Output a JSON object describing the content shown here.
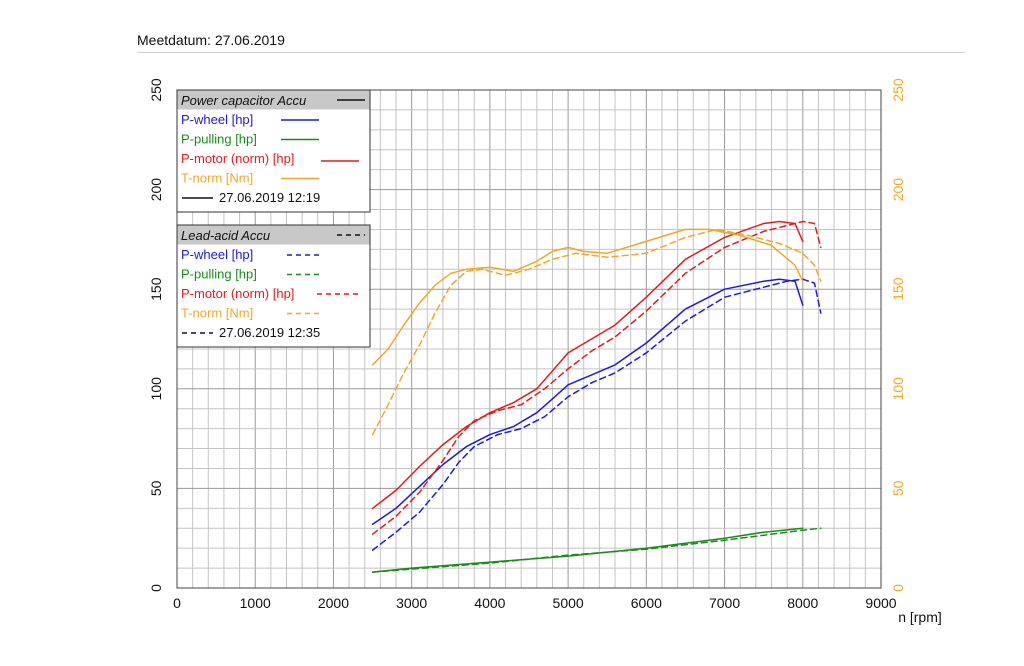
{
  "header": {
    "text": "Meetdatum: 27.06.2019"
  },
  "chart_data": {
    "type": "line",
    "xlabel": "n [rpm]",
    "xlim": [
      0,
      9000
    ],
    "ylim": [
      0,
      250
    ],
    "xticks": [
      0,
      1000,
      2000,
      3000,
      4000,
      5000,
      6000,
      7000,
      8000,
      9000
    ],
    "yticks": [
      0,
      50,
      100,
      150,
      200,
      250
    ],
    "grid": true,
    "right_axis_color": "#f5a623",
    "colors": {
      "p_wheel": "#1a1ae6",
      "p_pulling": "#1a8c1a",
      "p_motor": "#e61a1a",
      "t_norm": "#f5a623"
    },
    "legends": [
      {
        "title": "Power capacitor Accu",
        "dash": "solid",
        "entries": [
          {
            "label": "P-wheel [hp]",
            "series": "p_wheel"
          },
          {
            "label": "P-pulling [hp]",
            "series": "p_pulling"
          },
          {
            "label": "P-motor (norm) [hp]",
            "series": "p_motor"
          },
          {
            "label": "T-norm [Nm]",
            "series": "t_norm"
          },
          {
            "label": "27.06.2019 12:19",
            "series": "black"
          }
        ]
      },
      {
        "title": "Lead-acid Accu",
        "dash": "dashed",
        "entries": [
          {
            "label": "P-wheel [hp]",
            "series": "p_wheel"
          },
          {
            "label": "P-pulling [hp]",
            "series": "p_pulling"
          },
          {
            "label": "P-motor (norm) [hp]",
            "series": "p_motor"
          },
          {
            "label": "T-norm [Nm]",
            "series": "t_norm"
          },
          {
            "label": "27.06.2019 12:35",
            "series": "black"
          }
        ]
      }
    ],
    "series": [
      {
        "name": "P-wheel [hp] (Power capacitor Accu)",
        "key": "p_wheel",
        "dash": "solid",
        "x": [
          2500,
          2800,
          3100,
          3400,
          3700,
          4000,
          4300,
          4600,
          4800,
          5000,
          5300,
          5600,
          6000,
          6500,
          7000,
          7500,
          7700,
          7900,
          8000
        ],
        "y": [
          32,
          40,
          51,
          62,
          71,
          77,
          81,
          88,
          95,
          102,
          107,
          112,
          123,
          140,
          150,
          154,
          155,
          154,
          142
        ]
      },
      {
        "name": "P-wheel [hp] (Lead-acid Accu)",
        "key": "p_wheel",
        "dash": "dashed",
        "x": [
          2500,
          2800,
          3100,
          3400,
          3600,
          3800,
          4100,
          4400,
          4700,
          5000,
          5300,
          5600,
          6000,
          6500,
          7000,
          7500,
          7800,
          8000,
          8150,
          8230
        ],
        "y": [
          19,
          28,
          38,
          52,
          63,
          71,
          77,
          80,
          86,
          96,
          103,
          108,
          118,
          134,
          146,
          151,
          154,
          155,
          153,
          138
        ]
      },
      {
        "name": "P-pulling [hp] (Power capacitor Accu)",
        "key": "p_pulling",
        "dash": "solid",
        "x": [
          2500,
          3000,
          4000,
          5000,
          6000,
          7000,
          7500,
          8000
        ],
        "y": [
          8,
          10,
          13,
          16,
          20,
          25,
          28,
          30
        ]
      },
      {
        "name": "P-pulling [hp] (Lead-acid Accu)",
        "key": "p_pulling",
        "dash": "dashed",
        "x": [
          2500,
          3000,
          4000,
          5000,
          6000,
          7000,
          7500,
          8000,
          8230
        ],
        "y": [
          8,
          9.5,
          12.5,
          16.5,
          19.5,
          24,
          26.5,
          29,
          30
        ]
      },
      {
        "name": "P-motor (norm) [hp] (Power capacitor Accu)",
        "key": "p_motor",
        "dash": "solid",
        "x": [
          2500,
          2800,
          3100,
          3400,
          3700,
          4000,
          4300,
          4600,
          4800,
          5000,
          5300,
          5600,
          6000,
          6500,
          7000,
          7500,
          7700,
          7900,
          8000
        ],
        "y": [
          40,
          49,
          61,
          72,
          81,
          88,
          93,
          100,
          109,
          118,
          125,
          132,
          146,
          165,
          176,
          183,
          184,
          183,
          174
        ]
      },
      {
        "name": "P-motor (norm) [hp] (Lead-acid Accu)",
        "key": "p_motor",
        "dash": "dashed",
        "x": [
          2500,
          2800,
          3100,
          3400,
          3600,
          3800,
          4100,
          4400,
          4700,
          5000,
          5300,
          5600,
          6000,
          6500,
          7000,
          7500,
          7800,
          8000,
          8150,
          8230
        ],
        "y": [
          27,
          36,
          48,
          64,
          76,
          84,
          89,
          92,
          100,
          110,
          119,
          126,
          139,
          158,
          171,
          179,
          182,
          184,
          183,
          171
        ]
      },
      {
        "name": "T-norm [Nm] (Power capacitor Accu)",
        "key": "t_norm",
        "dash": "solid",
        "x": [
          2500,
          2700,
          2900,
          3100,
          3300,
          3500,
          3700,
          4000,
          4300,
          4600,
          4800,
          5000,
          5200,
          5500,
          6000,
          6500,
          6800,
          7200,
          7600,
          7900,
          8000
        ],
        "y": [
          112,
          120,
          132,
          143,
          152,
          158,
          160,
          161,
          159,
          164,
          169,
          171,
          169,
          168,
          174,
          180,
          180,
          177,
          172,
          162,
          154
        ]
      },
      {
        "name": "T-norm [Nm] (Lead-acid Accu)",
        "key": "t_norm",
        "dash": "dashed",
        "x": [
          2500,
          2700,
          2900,
          3100,
          3300,
          3500,
          3700,
          3900,
          4200,
          4500,
          4800,
          5100,
          5500,
          6000,
          6500,
          6900,
          7300,
          7700,
          8000,
          8150,
          8230
        ],
        "y": [
          77,
          92,
          108,
          122,
          138,
          152,
          159,
          160,
          157,
          160,
          165,
          168,
          166,
          168,
          176,
          180,
          177,
          173,
          168,
          162,
          154
        ]
      }
    ]
  }
}
